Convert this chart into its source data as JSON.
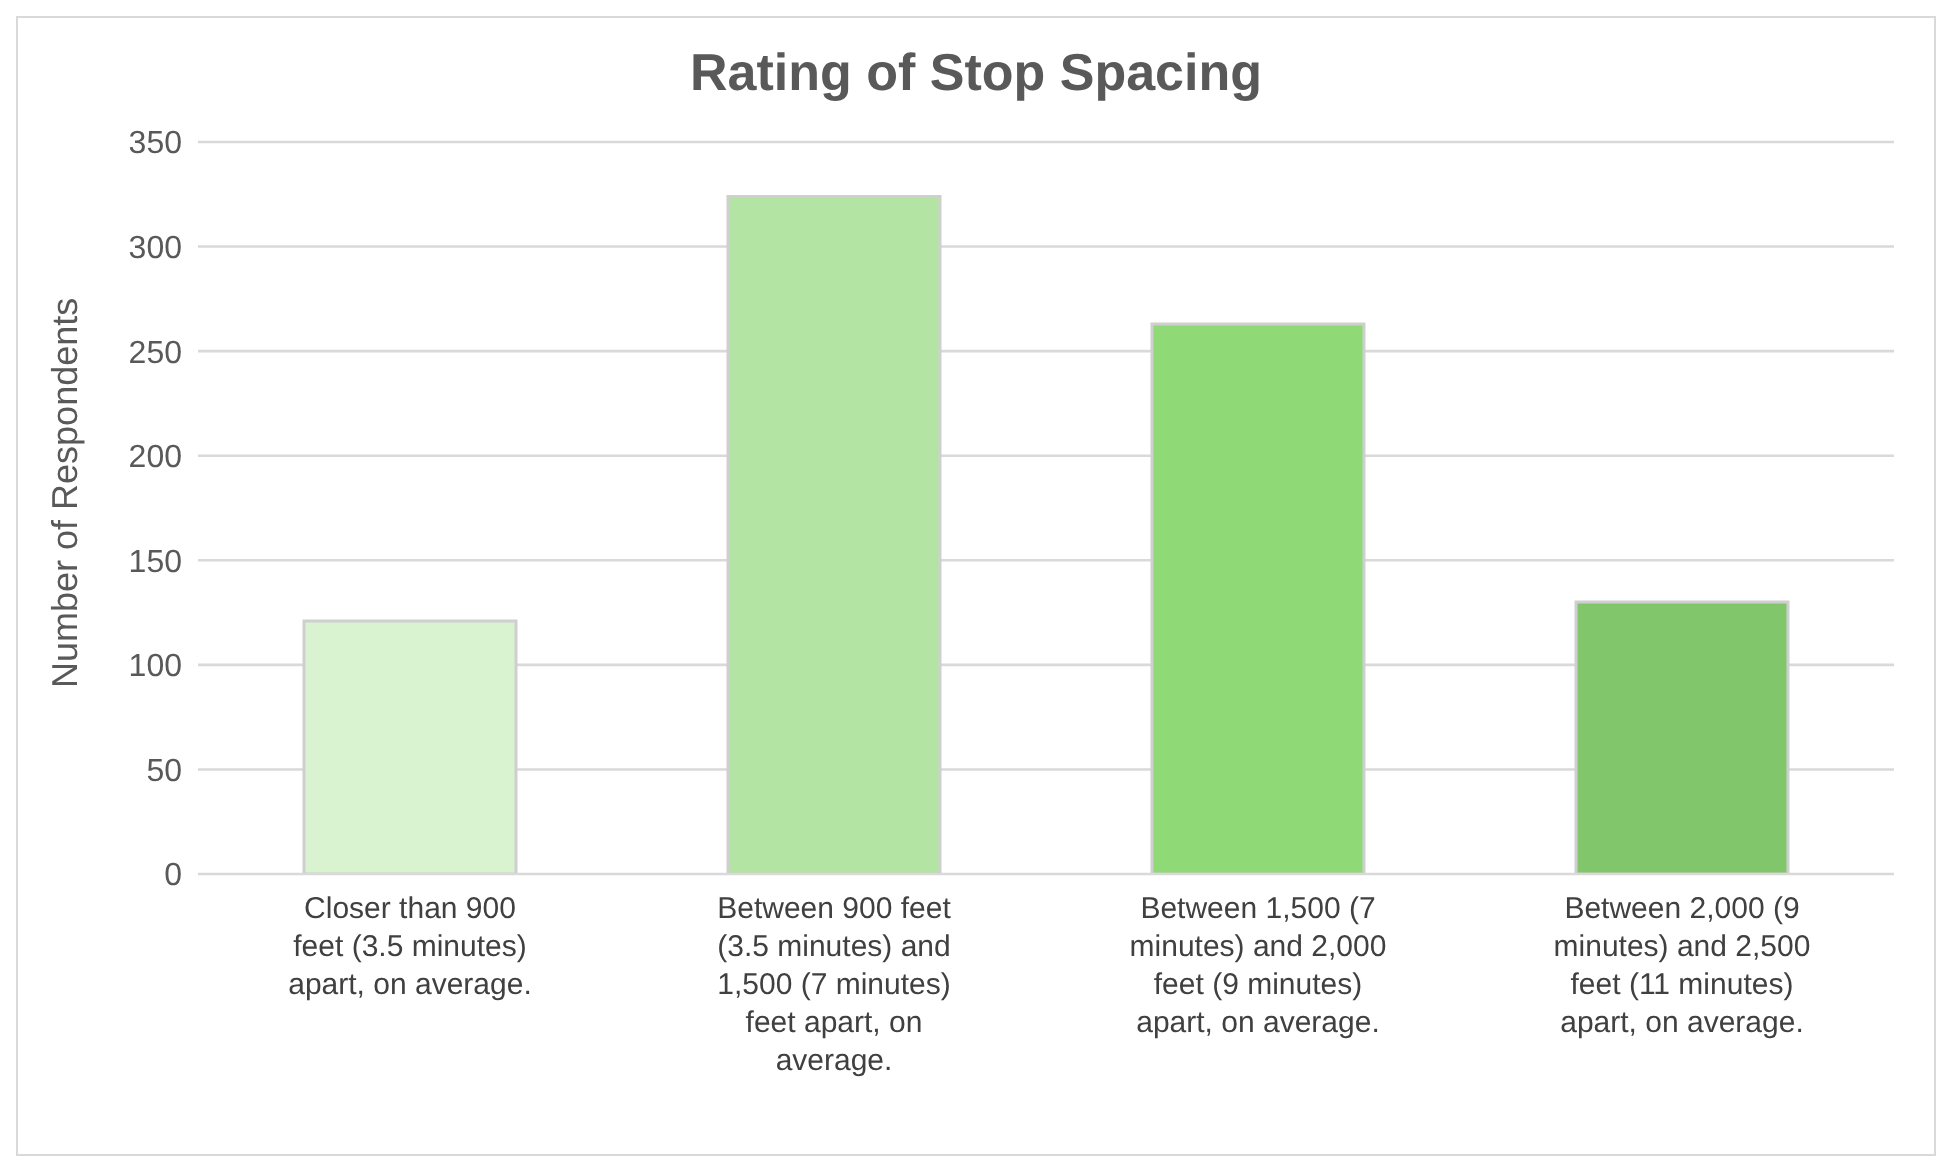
{
  "chart_data": {
    "type": "bar",
    "title": "Rating of Stop Spacing",
    "ylabel": "Number of Respondents",
    "categories": [
      "Closer than 900 feet (3.5 minutes) apart, on average.",
      "Between 900 feet (3.5 minutes) and 1,500 (7 minutes) feet apart, on average.",
      "Between 1,500 (7 minutes) and 2,000 feet (9 minutes) apart, on average.",
      "Between 2,000 (9 minutes) and 2,500 feet (11 minutes) apart, on average."
    ],
    "values": [
      121,
      324,
      263,
      130
    ],
    "colors": [
      "#d9f2d0",
      "#b4e4a3",
      "#8fd977",
      "#82c66b"
    ],
    "ylim": [
      0,
      350
    ],
    "yticks": [
      0,
      50,
      100,
      150,
      200,
      250,
      300,
      350
    ],
    "grid": "y",
    "legend": false
  }
}
